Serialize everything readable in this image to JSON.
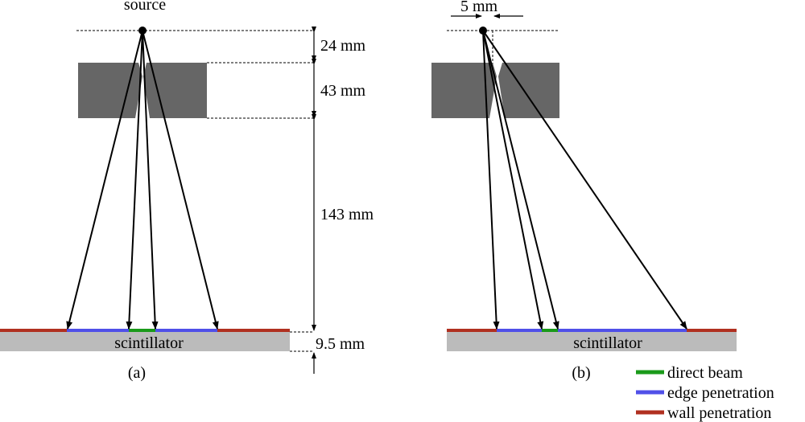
{
  "panel_a": {
    "source_label": "source",
    "dimensions": [
      "24 mm",
      "43 mm",
      "143 mm",
      "9.5 mm"
    ],
    "scintillator_label": "scintillator",
    "caption": "(a)"
  },
  "panel_b": {
    "offset_label": "5 mm",
    "scintillator_label": "scintillator",
    "caption": "(b)"
  },
  "legend": [
    {
      "label": "direct beam",
      "color": "#1a9a1a"
    },
    {
      "label": "edge penetration",
      "color": "#5050e8"
    },
    {
      "label": "wall penetration",
      "color": "#b03020"
    }
  ]
}
